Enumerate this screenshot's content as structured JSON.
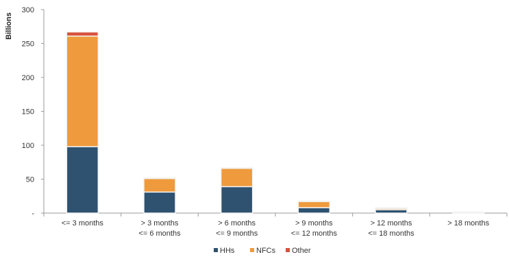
{
  "chart_data": {
    "type": "bar",
    "stacked": true,
    "title": "",
    "xlabel": "",
    "ylabel": "Billions",
    "ylim": [
      0,
      300
    ],
    "yticks": [
      0,
      50,
      100,
      150,
      200,
      250,
      300
    ],
    "ytick_labels": [
      "-",
      "50",
      "100",
      "150",
      "200",
      "250",
      "300"
    ],
    "grid": false,
    "legend_position": "bottom",
    "categories": [
      [
        "<= 3 months"
      ],
      [
        "> 3 months",
        "<= 6 months"
      ],
      [
        "> 6 months",
        "<= 9 months"
      ],
      [
        "> 9 months",
        "<= 12 months"
      ],
      [
        "> 12 months",
        "<= 18 months"
      ],
      [
        "> 18 months"
      ]
    ],
    "series": [
      {
        "name": "HHs",
        "color": "#2e5270",
        "values": [
          98,
          31,
          39,
          8,
          5,
          0.3
        ]
      },
      {
        "name": "NFCs",
        "color": "#ee9a3d",
        "values": [
          163,
          20,
          27,
          9,
          2,
          1.2
        ]
      },
      {
        "name": "Other",
        "color": "#d9503a",
        "values": [
          6,
          0.4,
          0.3,
          0.2,
          0.2,
          0
        ]
      }
    ]
  }
}
